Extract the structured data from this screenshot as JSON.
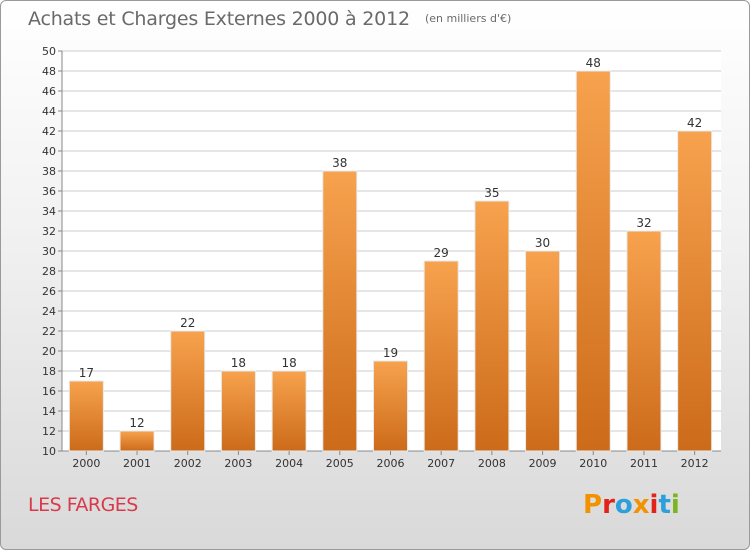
{
  "header": {
    "title": "Achats et Charges Externes 2000 à 2012",
    "subtitle": "(en milliers d'€)"
  },
  "footer": {
    "place": "LES FARGES",
    "logo": "Proxiti"
  },
  "colors": {
    "bar_light": "#f7a24e",
    "bar_dark": "#cc6b1a",
    "grid": "#cccccc",
    "place_text": "#d93a4a",
    "logo_letters": [
      "#f39200",
      "#e2231a",
      "#2c9fdc",
      "#f39200",
      "#e2231a",
      "#2c9fdc",
      "#7ab51d"
    ]
  },
  "chart_data": {
    "type": "bar",
    "title": "Achats et Charges Externes 2000 à 2012",
    "subtitle": "(en milliers d'€)",
    "xlabel": "",
    "ylabel": "",
    "categories": [
      "2000",
      "2001",
      "2002",
      "2003",
      "2004",
      "2005",
      "2006",
      "2007",
      "2008",
      "2009",
      "2010",
      "2011",
      "2012"
    ],
    "values": [
      17,
      12,
      22,
      18,
      18,
      38,
      19,
      29,
      35,
      30,
      48,
      32,
      42
    ],
    "ylim": [
      10,
      50
    ],
    "ytick_step": 2,
    "grid": true,
    "legend": "none"
  }
}
